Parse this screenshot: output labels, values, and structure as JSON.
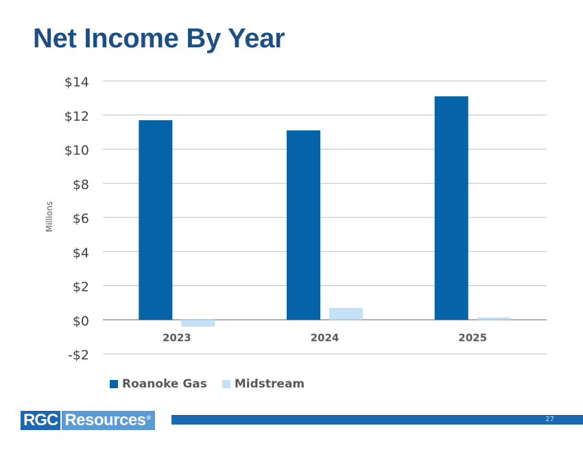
{
  "slide": {
    "title": "Net Income By Year",
    "page_number": "27"
  },
  "logo": {
    "part1": "RGC",
    "part2": "Resources",
    "registered_mark": "®"
  },
  "colors": {
    "title": "#1b4f86",
    "roanoke_gas": "#0563a8",
    "midstream": "#c3e2f7",
    "footer_bar": "#1b67b0"
  },
  "chart_data": {
    "type": "bar",
    "title": "",
    "xlabel": "",
    "ylabel": "Millions",
    "categories": [
      "2023",
      "2024",
      "2025"
    ],
    "series": [
      {
        "name": "Roanoke Gas",
        "values": [
          11.7,
          11.1,
          13.1
        ]
      },
      {
        "name": "Midstream",
        "values": [
          -0.4,
          0.7,
          0.15
        ]
      }
    ],
    "ylim": [
      -2,
      14
    ],
    "yticks": [
      14,
      12,
      10,
      8,
      6,
      4,
      2,
      0,
      -2
    ],
    "ytick_labels": [
      "$14",
      "$12",
      "$10",
      "$8",
      "$6",
      "$4",
      "$2",
      "$0",
      "-$2"
    ],
    "grid": true,
    "legend_position": "bottom-left"
  }
}
